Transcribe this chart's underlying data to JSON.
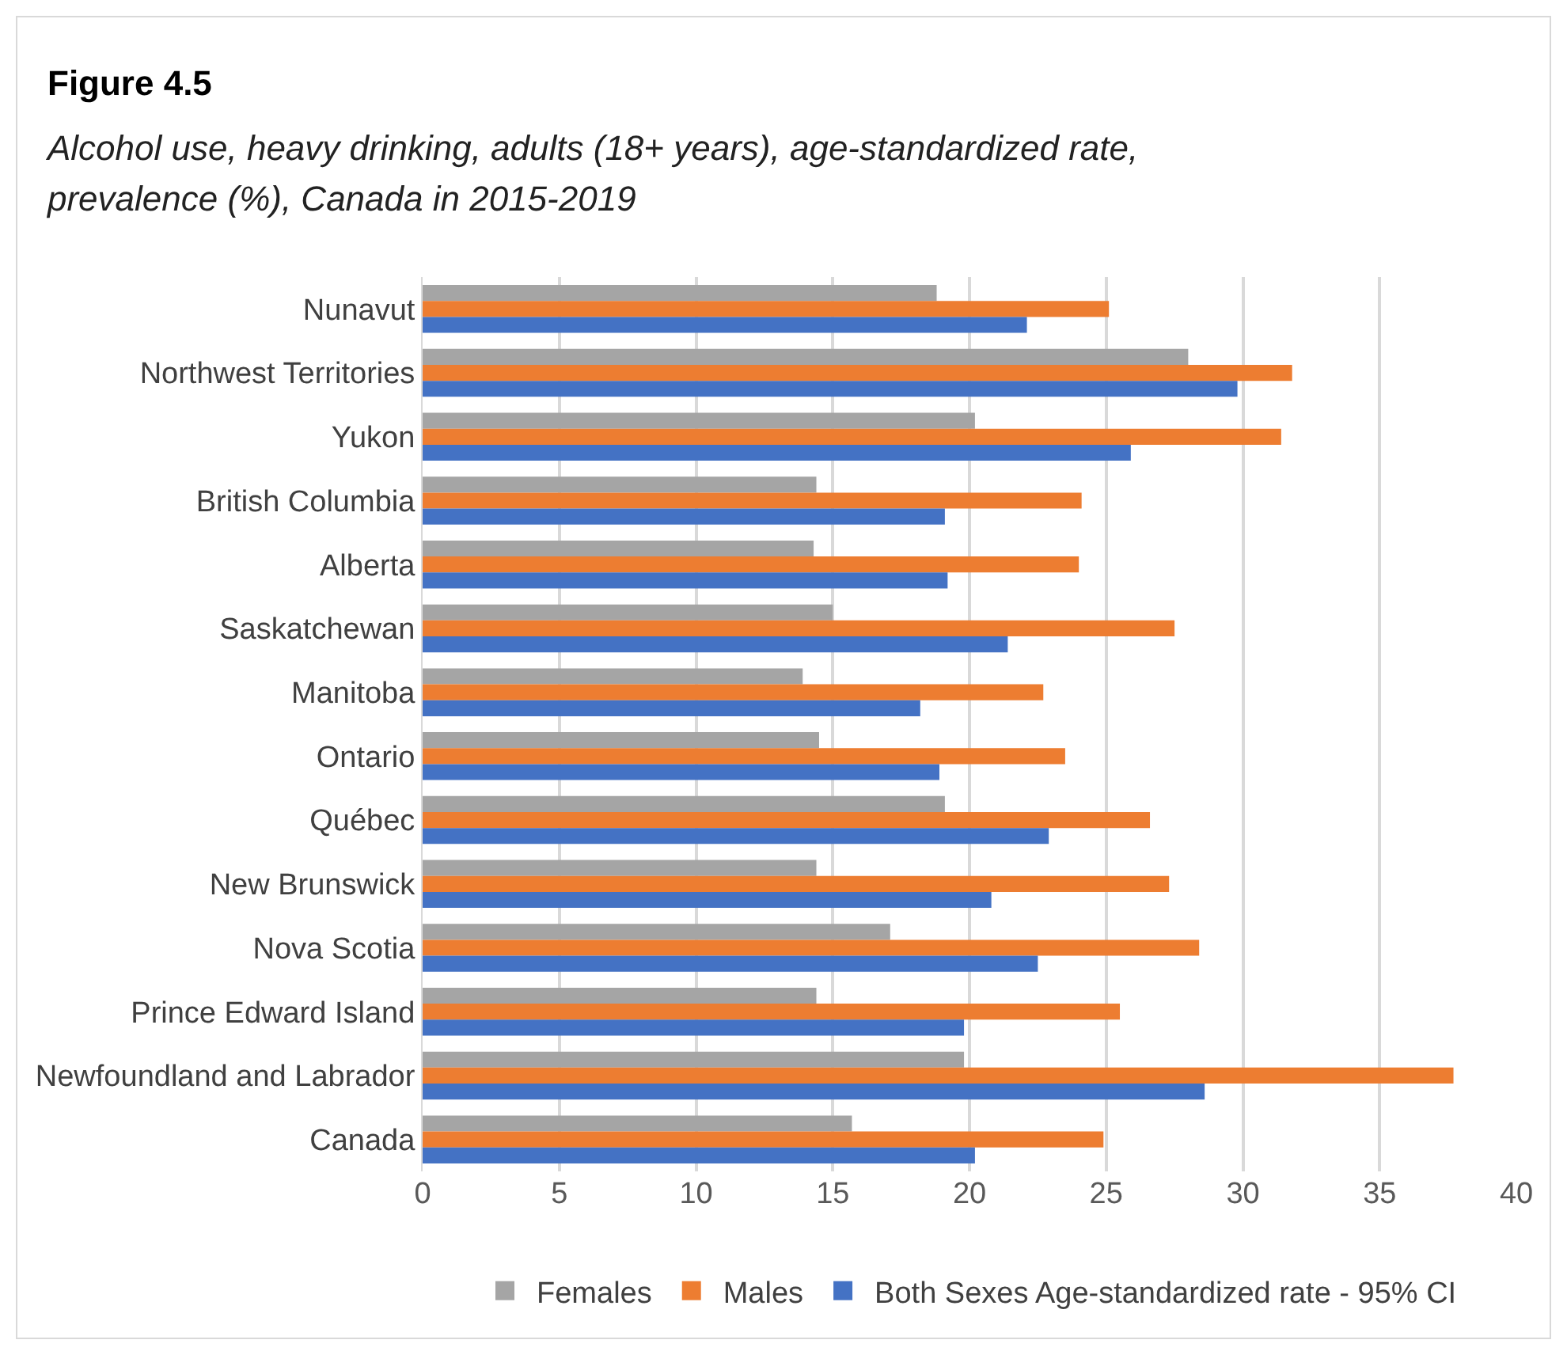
{
  "chart_data": {
    "type": "bar",
    "orientation": "horizontal",
    "title": "Figure 4.5",
    "subtitle": "Alcohol use, heavy drinking, adults (18+ years), age-standardized rate, prevalence (%), Canada in 2015-2019",
    "categories": [
      "Nunavut",
      "Northwest Territories",
      "Yukon",
      "British Columbia",
      "Alberta",
      "Saskatchewan",
      "Manitoba",
      "Ontario",
      "Québec",
      "New Brunswick",
      "Nova Scotia",
      "Prince Edward Island",
      "Newfoundland and Labrador",
      "Canada"
    ],
    "series": [
      {
        "name": "Females",
        "color": "#a5a5a5",
        "values": [
          18.8,
          28.0,
          20.2,
          14.4,
          14.3,
          15.0,
          13.9,
          14.5,
          19.1,
          14.4,
          17.1,
          14.4,
          19.8,
          15.7
        ]
      },
      {
        "name": "Males",
        "color": "#ed7d31",
        "values": [
          25.1,
          31.8,
          31.4,
          24.1,
          24.0,
          27.5,
          22.7,
          23.5,
          26.6,
          27.3,
          28.4,
          25.5,
          37.7,
          24.9
        ]
      },
      {
        "name": "Both Sexes Age-standardized rate - 95% CI",
        "color": "#4472c4",
        "values": [
          22.1,
          29.8,
          25.9,
          19.1,
          19.2,
          21.4,
          18.2,
          18.9,
          22.9,
          20.8,
          22.5,
          19.8,
          28.6,
          20.2
        ]
      }
    ],
    "xlim": [
      0,
      40
    ],
    "xticks": [
      0,
      5,
      10,
      15,
      20,
      25,
      30,
      35,
      40
    ],
    "grid": "x",
    "legend": "bottom"
  }
}
